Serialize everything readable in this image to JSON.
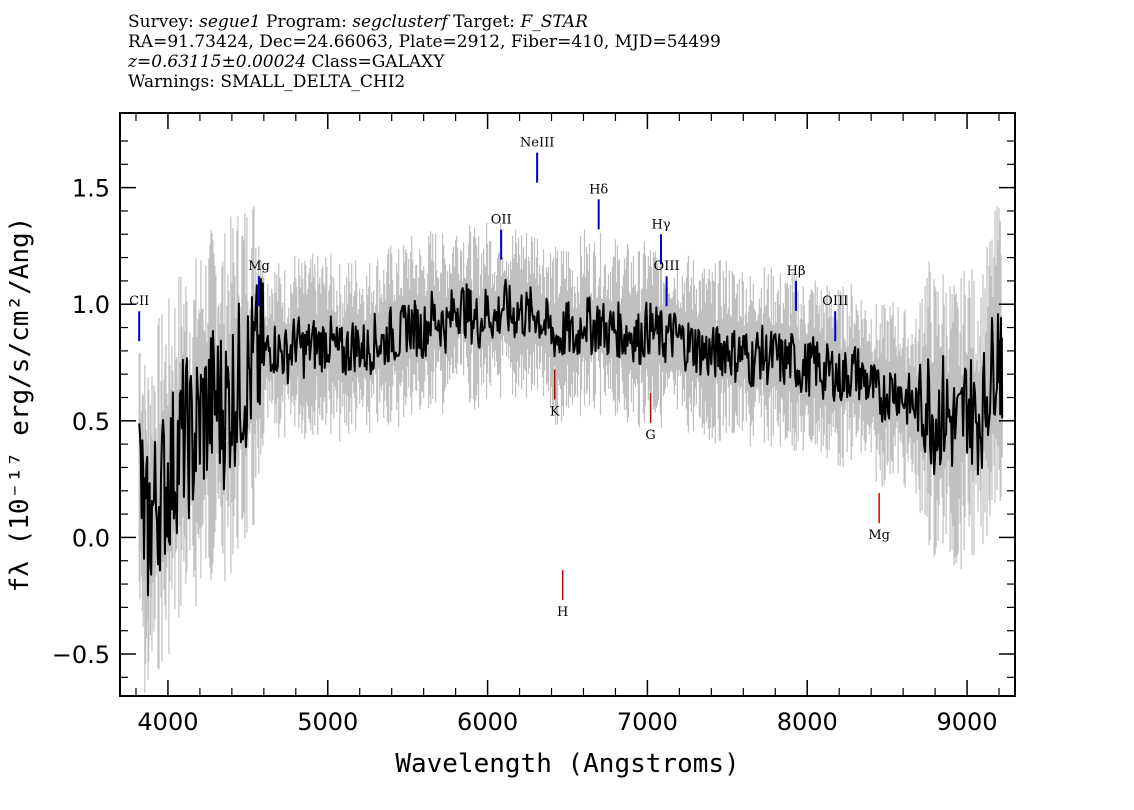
{
  "header": {
    "line1": {
      "survey_label": "Survey: ",
      "survey": "segue1",
      "program_label": " Program: ",
      "program": "segclusterf",
      "target_label": " Target: ",
      "target": "F_STAR"
    },
    "line2": "RA=91.73424, Dec=24.66063, Plate=2912, Fiber=410, MJD=54499",
    "line3": {
      "redshift": "z=0.63115±0.00024",
      "class": " Class=GALAXY"
    },
    "line4": "Warnings: SMALL_DELTA_CHI2"
  },
  "colors": {
    "flux": "#000000",
    "error": "#c0c0c0",
    "emission": "#0000cc",
    "absorption": "#cc0000"
  },
  "chart_data": {
    "type": "line",
    "xlabel": "Wavelength (Angstroms)",
    "ylabel": "fλ (10⁻¹⁷ erg/s/cm²/Ang)",
    "xlim": [
      3700,
      9300
    ],
    "ylim": [
      -0.68,
      1.82
    ],
    "xticks": [
      4000,
      5000,
      6000,
      7000,
      8000,
      9000
    ],
    "yticks": [
      -0.5,
      0.0,
      0.5,
      1.0,
      1.5
    ],
    "ytick_labels": [
      "−0.5",
      "0.0",
      "0.5",
      "1.0",
      "1.5"
    ],
    "grid": false,
    "series": [
      {
        "role": "flux",
        "x": [
          3820,
          3860,
          3900,
          3950,
          4000,
          4050,
          4100,
          4150,
          4200,
          4250,
          4300,
          4350,
          4400,
          4450,
          4500,
          4550,
          4600,
          4650,
          4700,
          4750,
          4800,
          4850,
          4900,
          4950,
          5000,
          5050,
          5100,
          5150,
          5200,
          5250,
          5300,
          5350,
          5400,
          5450,
          5500,
          5550,
          5600,
          5650,
          5700,
          5750,
          5800,
          5850,
          5900,
          5950,
          6000,
          6050,
          6100,
          6150,
          6200,
          6250,
          6300,
          6350,
          6400,
          6450,
          6500,
          6550,
          6600,
          6650,
          6700,
          6750,
          6800,
          6850,
          6900,
          6950,
          7000,
          7050,
          7100,
          7150,
          7200,
          7250,
          7300,
          7350,
          7400,
          7450,
          7500,
          7550,
          7600,
          7650,
          7700,
          7750,
          7800,
          7850,
          7900,
          7950,
          8000,
          8050,
          8100,
          8150,
          8200,
          8250,
          8300,
          8350,
          8400,
          8450,
          8500,
          8550,
          8600,
          8650,
          8700,
          8750,
          8800,
          8850,
          8900,
          8950,
          9000,
          9050,
          9100,
          9150,
          9200,
          9220
        ],
        "y": [
          0.3,
          0.0,
          0.1,
          0.2,
          0.25,
          0.35,
          0.45,
          0.4,
          0.5,
          0.55,
          0.6,
          0.55,
          0.62,
          0.68,
          0.7,
          0.75,
          0.78,
          0.82,
          0.8,
          0.78,
          0.85,
          0.8,
          0.83,
          0.82,
          0.85,
          0.8,
          0.78,
          0.83,
          0.82,
          0.8,
          0.85,
          0.83,
          0.88,
          0.85,
          0.92,
          0.9,
          0.88,
          0.95,
          0.93,
          0.9,
          1.0,
          0.98,
          0.95,
          0.92,
          0.98,
          0.93,
          1.0,
          0.95,
          0.97,
          0.95,
          0.97,
          0.92,
          0.88,
          0.85,
          0.9,
          0.83,
          0.95,
          0.9,
          0.92,
          0.88,
          0.9,
          0.87,
          0.88,
          0.85,
          0.9,
          0.88,
          0.85,
          0.87,
          0.85,
          0.83,
          0.82,
          0.8,
          0.78,
          0.8,
          0.82,
          0.78,
          0.8,
          0.75,
          0.8,
          0.77,
          0.78,
          0.75,
          0.77,
          0.73,
          0.72,
          0.75,
          0.7,
          0.72,
          0.68,
          0.7,
          0.72,
          0.68,
          0.65,
          0.6,
          0.62,
          0.65,
          0.6,
          0.58,
          0.55,
          0.6,
          0.5,
          0.55,
          0.5,
          0.45,
          0.6,
          0.5,
          0.55,
          0.7,
          0.85,
          0.6
        ]
      }
    ],
    "line_markers": [
      {
        "label": "CII",
        "x": 3820,
        "kind": "emission",
        "y": 0.97
      },
      {
        "label": "Mg",
        "x": 4570,
        "kind": "emission",
        "y": 1.12
      },
      {
        "label": "OII",
        "x": 6085,
        "kind": "emission",
        "y": 1.32
      },
      {
        "label": "NeIII",
        "x": 6310,
        "kind": "emission",
        "y": 1.65
      },
      {
        "label": "Hδ",
        "x": 6695,
        "kind": "emission",
        "y": 1.45
      },
      {
        "label": "Hγ",
        "x": 7085,
        "kind": "emission",
        "y": 1.3
      },
      {
        "label": "OIII",
        "x": 7120,
        "kind": "emission",
        "y": 1.12
      },
      {
        "label": "Hβ",
        "x": 7930,
        "kind": "emission",
        "y": 1.1
      },
      {
        "label": "OIII",
        "x": 8175,
        "kind": "emission",
        "y": 0.97
      },
      {
        "label": "K",
        "x": 6420,
        "kind": "absorption",
        "y": 0.72
      },
      {
        "label": "G",
        "x": 7020,
        "kind": "absorption",
        "y": 0.62
      },
      {
        "label": "Mg",
        "x": 8450,
        "kind": "absorption",
        "y": 0.19
      },
      {
        "label": "H",
        "x": 6470,
        "kind": "absorption",
        "y": -0.14
      }
    ]
  }
}
